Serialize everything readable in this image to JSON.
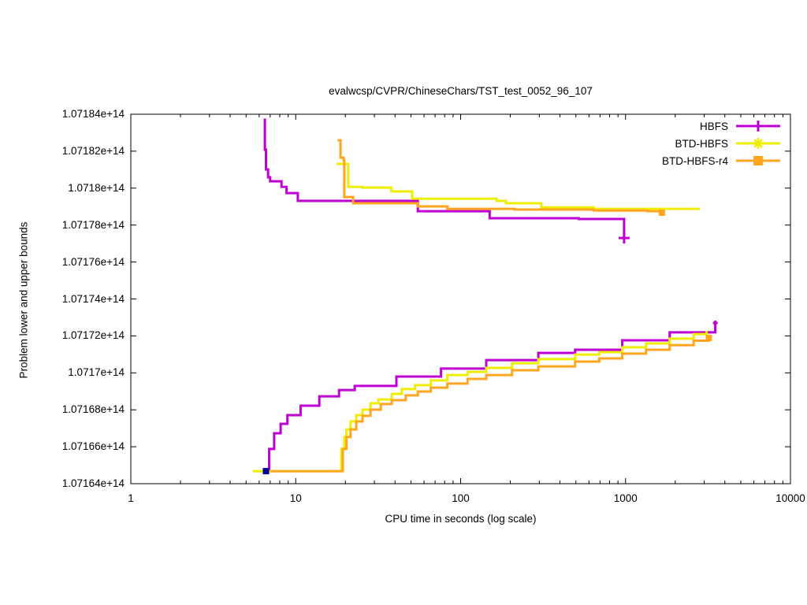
{
  "figure": {
    "title": "evalwcsp/CVPR/ChineseChars/TST_test_0052_96_107",
    "xlabel": "CPU time in seconds (log scale)",
    "ylabel": "Problem lower and upper bounds",
    "background": "#ffffff",
    "axis_color": "#000000"
  },
  "legend": {
    "position": "top-right-inside",
    "entries": [
      {
        "label": "HBFS",
        "color": "#be00d2",
        "marker": "plus"
      },
      {
        "label": "BTD-HBFS",
        "color": "#eeee00",
        "marker": "asterisk"
      },
      {
        "label": "BTD-HBFS-r4",
        "color": "#ffa620",
        "marker": "square"
      }
    ]
  },
  "chart_data": {
    "type": "line",
    "title": "evalwcsp/CVPR/ChineseChars/TST_test_0052_96_107",
    "xlabel": "CPU time in seconds (log scale)",
    "ylabel": "Problem lower and upper bounds",
    "x_scale": "log",
    "x_range": [
      1,
      10000
    ],
    "y_scale_note": "values are in units of 1e14",
    "y_range_e14": [
      1.07164,
      1.07184
    ],
    "grid": false,
    "x_ticks": [
      1,
      10,
      100,
      1000,
      10000
    ],
    "x_tick_labels": [
      "1",
      "10",
      "100",
      "1000",
      "10000"
    ],
    "x_minor_multiples": [
      2,
      3,
      4,
      5,
      6,
      7,
      8,
      9
    ],
    "y_ticks_e14": [
      1.07164,
      1.07166,
      1.07168,
      1.0717,
      1.07172,
      1.07174,
      1.07176,
      1.07178,
      1.0718,
      1.07182,
      1.07184
    ],
    "y_tick_labels": [
      "1.07164e+14",
      "1.07166e+14",
      "1.07168e+14",
      "1.0717e+14",
      "1.07172e+14",
      "1.07174e+14",
      "1.07176e+14",
      "1.07178e+14",
      "1.0718e+14",
      "1.07182e+14",
      "1.07184e+14"
    ],
    "series": [
      {
        "name": "hbfs-upper",
        "legend": "HBFS",
        "bound": "upper",
        "color": "#be00d2",
        "marker": "plus",
        "end_marker": true,
        "end_marker_size": 7,
        "points": [
          [
            6.4,
            1.071837
          ],
          [
            6.5,
            1.0718208
          ],
          [
            6.6,
            1.0718101
          ],
          [
            6.8,
            1.0718059
          ],
          [
            7.0,
            1.0718037
          ],
          [
            8.2,
            1.0718007
          ],
          [
            8.8,
            1.0717973
          ],
          [
            10.3,
            1.0717931
          ],
          [
            55,
            1.0717875
          ],
          [
            150,
            1.0717837
          ],
          [
            520,
            1.0717833
          ],
          [
            980,
            1.071773
          ]
        ]
      },
      {
        "name": "hbfs-lower",
        "legend": "HBFS",
        "bound": "lower",
        "color": "#be00d2",
        "marker": "plus",
        "end_marker": true,
        "end_marker_size": 3,
        "points": [
          [
            6.5,
            1.0716468
          ],
          [
            6.9,
            1.0716588
          ],
          [
            7.4,
            1.0716673
          ],
          [
            8.1,
            1.0716724
          ],
          [
            8.9,
            1.0716771
          ],
          [
            10.7,
            1.0716822
          ],
          [
            13.9,
            1.0716873
          ],
          [
            18.3,
            1.0716907
          ],
          [
            22.8,
            1.0716929
          ],
          [
            40.8,
            1.071698
          ],
          [
            76,
            1.0717023
          ],
          [
            143,
            1.0717069
          ],
          [
            296,
            1.0717108
          ],
          [
            495,
            1.0717125
          ],
          [
            955,
            1.0717176
          ],
          [
            1850,
            1.0717219
          ],
          [
            3500,
            1.071727
          ]
        ]
      },
      {
        "name": "btd-hbfs-upper",
        "legend": "BTD-HBFS",
        "bound": "upper",
        "color": "#eeee00",
        "marker": "asterisk",
        "end_marker": false,
        "end_marker_size": 3,
        "points": [
          [
            17.7,
            1.0718131
          ],
          [
            20.8,
            1.0718007
          ],
          [
            25.4,
            1.0718003
          ],
          [
            38,
            1.0717982
          ],
          [
            50.8,
            1.0717943
          ],
          [
            165,
            1.0717931
          ],
          [
            188,
            1.0717918
          ],
          [
            309,
            1.0717896
          ],
          [
            639,
            1.0717888
          ],
          [
            2820,
            1.0717888
          ]
        ]
      },
      {
        "name": "btd-hbfs-lower",
        "legend": "BTD-HBFS",
        "bound": "lower",
        "color": "#eeee00",
        "marker": "asterisk",
        "end_marker": false,
        "end_marker_size": 3,
        "points": [
          [
            5.5,
            1.0716468
          ],
          [
            18.9,
            1.0716588
          ],
          [
            19.7,
            1.0716652
          ],
          [
            20.3,
            1.0716694
          ],
          [
            21.5,
            1.0716737
          ],
          [
            23.3,
            1.0716771
          ],
          [
            25.4,
            1.0716801
          ],
          [
            28.4,
            1.0716835
          ],
          [
            31.7,
            1.0716856
          ],
          [
            38.2,
            1.0716886
          ],
          [
            44,
            1.0716912
          ],
          [
            53,
            1.0716933
          ],
          [
            66,
            1.0716959
          ],
          [
            83,
            1.0716988
          ],
          [
            110,
            1.0717005
          ],
          [
            143,
            1.0717027
          ],
          [
            205,
            1.0717052
          ],
          [
            296,
            1.0717074
          ],
          [
            495,
            1.0717099
          ],
          [
            693,
            1.0717112
          ],
          [
            955,
            1.0717138
          ],
          [
            1330,
            1.0717159
          ],
          [
            1850,
            1.0717185
          ],
          [
            2590,
            1.071721
          ],
          [
            3100,
            1.0717227
          ]
        ]
      },
      {
        "name": "btd-hbfs-r4-upper",
        "legend": "BTD-HBFS-r4",
        "bound": "upper",
        "color": "#ffa620",
        "marker": "square",
        "end_marker": true,
        "end_marker_size": 4,
        "points": [
          [
            17.9,
            1.0718259
          ],
          [
            18.7,
            1.0718165
          ],
          [
            19.5,
            1.0718152
          ],
          [
            19.7,
            1.0717952
          ],
          [
            22.3,
            1.0717918
          ],
          [
            55,
            1.0717901
          ],
          [
            83,
            1.0717888
          ],
          [
            212,
            1.0717884
          ],
          [
            639,
            1.0717879
          ],
          [
            1360,
            1.0717875
          ],
          [
            1660,
            1.0717867
          ]
        ]
      },
      {
        "name": "btd-hbfs-r4-lower",
        "legend": "BTD-HBFS-r4",
        "bound": "lower",
        "color": "#ffa620",
        "marker": "square",
        "end_marker": true,
        "end_marker_size": 4,
        "points": [
          [
            7.0,
            1.0716468
          ],
          [
            19.3,
            1.0716588
          ],
          [
            20.3,
            1.0716652
          ],
          [
            21.5,
            1.0716694
          ],
          [
            23.3,
            1.0716737
          ],
          [
            25.4,
            1.0716767
          ],
          [
            28.4,
            1.0716801
          ],
          [
            32.8,
            1.0716831
          ],
          [
            38.2,
            1.0716852
          ],
          [
            46.5,
            1.0716878
          ],
          [
            55,
            1.0716899
          ],
          [
            66,
            1.071692
          ],
          [
            83,
            1.0716942
          ],
          [
            110,
            1.0716967
          ],
          [
            143,
            1.0716988
          ],
          [
            205,
            1.0717014
          ],
          [
            296,
            1.0717035
          ],
          [
            495,
            1.0717061
          ],
          [
            693,
            1.0717078
          ],
          [
            955,
            1.0717104
          ],
          [
            1330,
            1.0717125
          ],
          [
            1850,
            1.071715
          ],
          [
            2590,
            1.0717174
          ],
          [
            3200,
            1.0717189
          ]
        ]
      }
    ],
    "extra_points": [
      {
        "name": "blue-start-marker",
        "color": "#000099",
        "marker": "square",
        "size": 4,
        "t": 6.6,
        "value_e14": 1.0716468
      }
    ]
  }
}
